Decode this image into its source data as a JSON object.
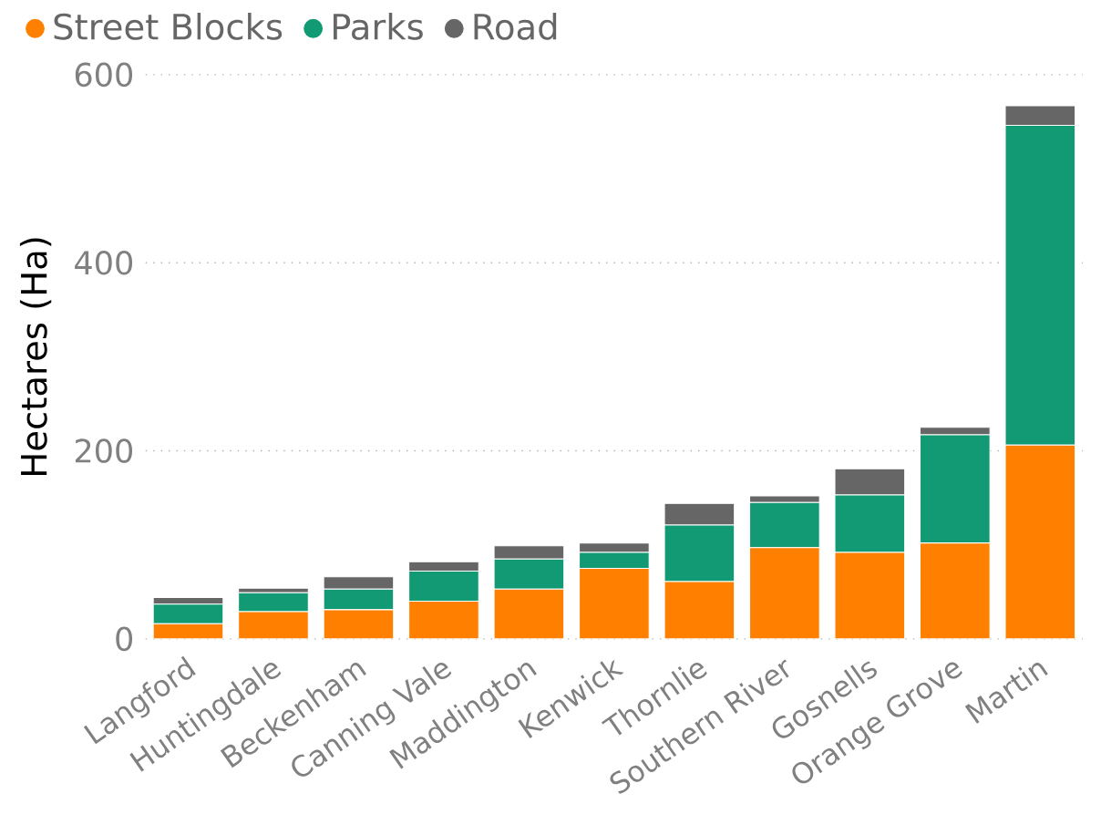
{
  "chart_data": {
    "type": "bar",
    "stacked": true,
    "ylabel": "Hectares (Ha)",
    "categories": [
      "Langford",
      "Huntingdale",
      "Beckenham",
      "Canning Vale",
      "Maddington",
      "Kenwick",
      "Thornlie",
      "Southern River",
      "Gosnells",
      "Orange Grove",
      "Martin"
    ],
    "series": [
      {
        "name": "Street Blocks",
        "color": "#ff8000",
        "values": [
          16,
          29,
          31,
          40,
          53,
          75,
          61,
          97,
          92,
          102,
          206
        ]
      },
      {
        "name": "Parks",
        "color": "#129a74",
        "values": [
          21,
          20,
          22,
          32,
          32,
          17,
          60,
          48,
          61,
          115,
          340
        ]
      },
      {
        "name": "Road",
        "color": "#666666",
        "values": [
          7,
          5,
          13,
          10,
          14,
          10,
          23,
          7,
          28,
          8,
          21
        ]
      }
    ],
    "ylim": [
      0,
      600
    ],
    "yticks": [
      0,
      200,
      400,
      600
    ],
    "grid": "y",
    "legend": "top left"
  }
}
